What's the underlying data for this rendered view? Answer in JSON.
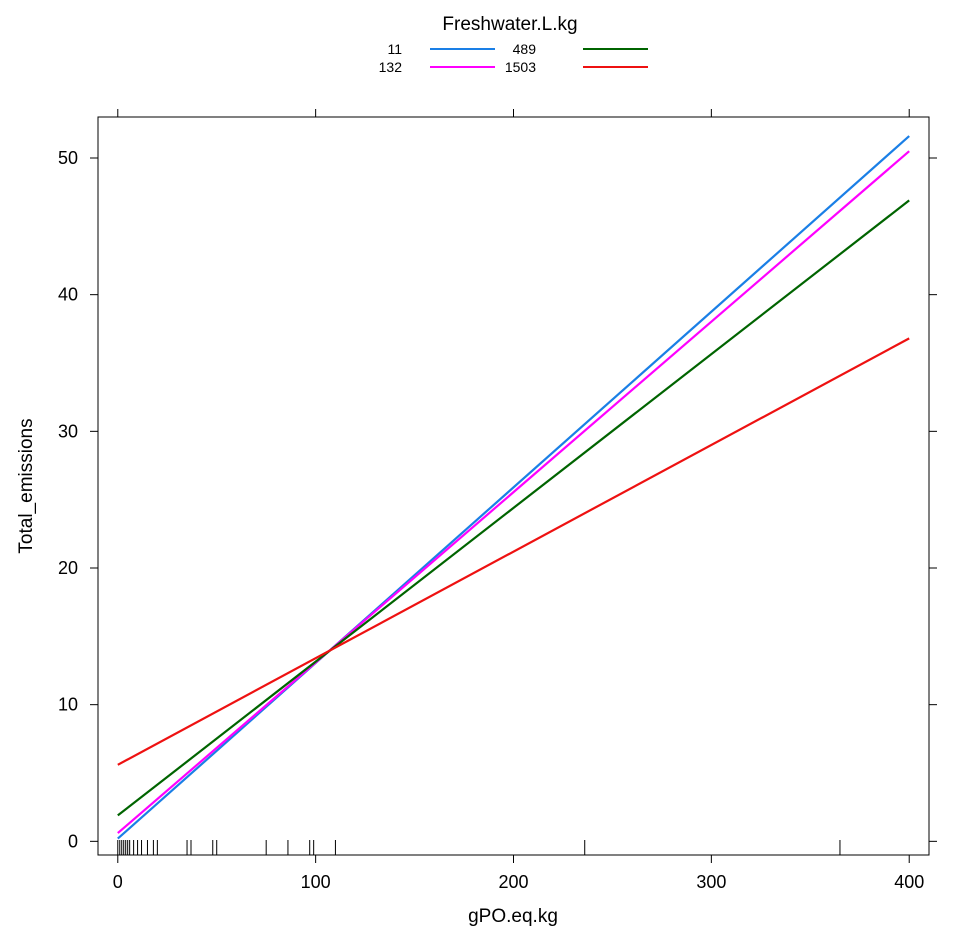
{
  "chart_data": {
    "type": "line",
    "title": "",
    "xlabel": "gPO.eq.kg",
    "ylabel": "Total_emissions",
    "xlim": [
      -10,
      410
    ],
    "ylim": [
      -1,
      53
    ],
    "xticks": [
      0,
      100,
      200,
      300,
      400
    ],
    "yticks": [
      0,
      10,
      20,
      30,
      40,
      50
    ],
    "xtick_labels": [
      "0",
      "100",
      "200",
      "300",
      "400"
    ],
    "ytick_labels": [
      "0",
      "10",
      "20",
      "30",
      "40",
      "50"
    ],
    "grid": false,
    "legend": {
      "title": "Freshwater.L.kg",
      "placement": "top"
    },
    "series": [
      {
        "name": "11",
        "color": "#1a7fe6",
        "x": [
          0,
          400
        ],
        "y": [
          0.2,
          51.6
        ]
      },
      {
        "name": "132",
        "color": "#ff00ff",
        "x": [
          0,
          400
        ],
        "y": [
          0.6,
          50.5
        ]
      },
      {
        "name": "489",
        "color": "#006400",
        "x": [
          0,
          400
        ],
        "y": [
          1.9,
          46.9
        ]
      },
      {
        "name": "1503",
        "color": "#ee1111",
        "x": [
          0,
          400
        ],
        "y": [
          5.6,
          36.8
        ]
      }
    ],
    "rug_x": [
      0,
      1,
      2,
      3,
      4,
      5,
      6,
      8,
      10,
      12,
      15,
      18,
      20,
      35,
      37,
      48,
      50,
      75,
      86,
      97,
      99,
      110,
      236,
      365
    ]
  }
}
